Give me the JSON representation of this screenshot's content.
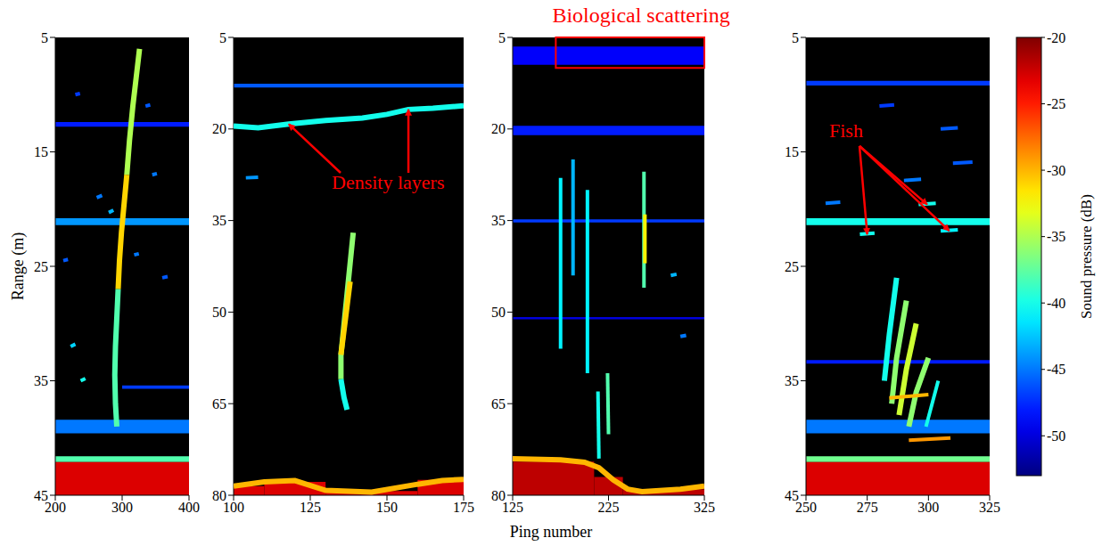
{
  "chart_data": [
    {
      "type": "echogram",
      "xlim": [
        200,
        400
      ],
      "xticks": [
        200,
        300,
        400
      ],
      "ylim": [
        5,
        45
      ],
      "yticks": [
        5,
        15,
        25,
        35,
        45
      ],
      "layers": [
        {
          "x": [
            200,
            400
          ],
          "y": [
            12.4,
            12.8
          ],
          "db": -48
        },
        {
          "x": [
            200,
            400
          ],
          "y": [
            20.8,
            21.4
          ],
          "db": -44
        },
        {
          "x": [
            300,
            400
          ],
          "y": [
            35.4,
            35.7
          ],
          "db": -47
        },
        {
          "x": [
            200,
            400
          ],
          "y": [
            38.4,
            39.6
          ],
          "db": -45
        },
        {
          "x": [
            200,
            400
          ],
          "y": [
            41.6,
            42.1
          ],
          "db": -38
        },
        {
          "x": [
            200,
            400
          ],
          "y": [
            42.1,
            45
          ],
          "db": -23
        }
      ],
      "tracks": [
        {
          "x": [
            326,
            321,
            316,
            311,
            307
          ],
          "y": [
            6,
            8.5,
            11,
            14,
            17
          ],
          "db": -35
        },
        {
          "x": [
            307,
            303,
            299,
            296,
            294
          ],
          "y": [
            17,
            19.5,
            22,
            24.5,
            27
          ],
          "db": -31
        },
        {
          "x": [
            294,
            292,
            290,
            289,
            290,
            292
          ],
          "y": [
            27,
            29.5,
            32,
            34.5,
            37,
            39
          ],
          "db": -38
        },
        {
          "x": [
            223,
            230
          ],
          "y": [
            32,
            31.8
          ],
          "db": -42
        },
        {
          "x": [
            238,
            245
          ],
          "y": [
            35,
            34.8
          ],
          "db": -40
        },
        {
          "x": [
            262,
            270
          ],
          "y": [
            19,
            18.8
          ],
          "db": -45
        },
        {
          "x": [
            280,
            287
          ],
          "y": [
            20.3,
            20.1
          ],
          "db": -43
        },
        {
          "x": [
            345,
            352
          ],
          "y": [
            17,
            16.9
          ],
          "db": -45
        },
        {
          "x": [
            318,
            325
          ],
          "y": [
            24,
            23.9
          ],
          "db": -45
        },
        {
          "x": [
            212,
            219
          ],
          "y": [
            24.5,
            24.4
          ],
          "db": -46
        },
        {
          "x": [
            360,
            368
          ],
          "y": [
            26,
            25.9
          ],
          "db": -46
        },
        {
          "x": [
            230,
            237
          ],
          "y": [
            10,
            9.9
          ],
          "db": -47
        },
        {
          "x": [
            335,
            342
          ],
          "y": [
            11,
            10.9
          ],
          "db": -46
        }
      ]
    },
    {
      "type": "echogram",
      "xlim": [
        100,
        175
      ],
      "xticks": [
        100,
        125,
        150,
        175
      ],
      "ylim": [
        5,
        80
      ],
      "yticks": [
        5,
        20,
        35,
        50,
        65,
        80
      ],
      "layers": [
        {
          "x": [
            100,
            175
          ],
          "y": [
            12.6,
            13.2
          ],
          "db": -46
        },
        {
          "x": [
            100,
            110
          ],
          "y": [
            78.5,
            80
          ],
          "db": -23
        },
        {
          "x": [
            110,
            130
          ],
          "y": [
            77.8,
            80
          ],
          "db": -23
        },
        {
          "x": [
            130,
            160
          ],
          "y": [
            79.3,
            80
          ],
          "db": -23
        },
        {
          "x": [
            160,
            175
          ],
          "y": [
            77.5,
            80
          ],
          "db": -23
        }
      ],
      "tracks": [
        {
          "x": [
            100,
            108,
            118,
            130,
            142,
            150,
            157,
            165,
            175
          ],
          "y": [
            19.5,
            19.8,
            19.2,
            18.6,
            18.2,
            17.6,
            16.8,
            16.6,
            16.2
          ],
          "db": -40
        },
        {
          "x": [
            139,
            138,
            137,
            136,
            135,
            135
          ],
          "y": [
            37,
            42,
            47,
            52,
            57,
            61
          ],
          "db": -36
        },
        {
          "x": [
            138,
            137,
            136,
            135
          ],
          "y": [
            45,
            49,
            53,
            57
          ],
          "db": -31
        },
        {
          "x": [
            135,
            136,
            137
          ],
          "y": [
            61,
            64,
            66
          ],
          "db": -40
        },
        {
          "x": [
            100,
            110,
            120,
            130,
            145,
            160,
            168,
            175
          ],
          "y": [
            78.5,
            77.8,
            77.6,
            79.2,
            79.5,
            78.2,
            77.6,
            77.4
          ],
          "db": -30
        },
        {
          "x": [
            104,
            108
          ],
          "y": [
            28,
            27.9
          ],
          "db": -44
        }
      ],
      "annotations": [
        {
          "text": "Density layers",
          "targets": [
            [
              118,
              19.2
            ],
            [
              157,
              16.8
            ]
          ]
        }
      ]
    },
    {
      "type": "echogram",
      "xlim": [
        125,
        325
      ],
      "xticks": [
        125,
        225,
        325
      ],
      "ylim": [
        5,
        80
      ],
      "yticks": [
        5,
        20,
        35,
        50,
        65,
        80
      ],
      "layers": [
        {
          "x": [
            125,
            325
          ],
          "y": [
            6.5,
            9.5
          ],
          "db": -49
        },
        {
          "x": [
            125,
            325
          ],
          "y": [
            19.5,
            21
          ],
          "db": -48
        },
        {
          "x": [
            125,
            325
          ],
          "y": [
            34.8,
            35.3
          ],
          "db": -47
        },
        {
          "x": [
            125,
            325
          ],
          "y": [
            50.8,
            51.2
          ],
          "db": -50
        },
        {
          "x": [
            125,
            210
          ],
          "y": [
            74.5,
            80
          ],
          "db": -22
        },
        {
          "x": [
            210,
            240
          ],
          "y": [
            77,
            80
          ],
          "db": -22
        },
        {
          "x": [
            240,
            325
          ],
          "y": [
            79,
            80
          ],
          "db": -22
        }
      ],
      "tracks": [
        {
          "x": [
            125,
            175,
            200,
            215,
            230,
            245,
            260,
            300,
            325
          ],
          "y": [
            74,
            74.2,
            74.6,
            75.5,
            77.5,
            79,
            79.4,
            79,
            78.5
          ],
          "db": -30
        },
        {
          "x": [
            175,
            175
          ],
          "y": [
            28,
            56
          ],
          "db": -41
        },
        {
          "x": [
            188,
            188
          ],
          "y": [
            25,
            44
          ],
          "db": -43
        },
        {
          "x": [
            203,
            203
          ],
          "y": [
            30,
            60
          ],
          "db": -41
        },
        {
          "x": [
            262,
            262
          ],
          "y": [
            27,
            46
          ],
          "db": -38
        },
        {
          "x": [
            263,
            263
          ],
          "y": [
            34,
            42
          ],
          "db": -32
        },
        {
          "x": [
            214,
            215
          ],
          "y": [
            63,
            74
          ],
          "db": -40
        },
        {
          "x": [
            224,
            225
          ],
          "y": [
            60,
            70
          ],
          "db": -38
        },
        {
          "x": [
            290,
            296
          ],
          "y": [
            44,
            43.8
          ],
          "db": -43
        },
        {
          "x": [
            300,
            306
          ],
          "y": [
            54,
            53.8
          ],
          "db": -45
        }
      ],
      "annotations": [
        {
          "text": "Biological scattering",
          "box": {
            "x": [
              170,
              325
            ],
            "y": [
              5,
              10
            ]
          }
        }
      ]
    },
    {
      "type": "echogram",
      "xlim": [
        250,
        325
      ],
      "xticks": [
        250,
        275,
        300,
        325
      ],
      "ylim": [
        5,
        45
      ],
      "yticks": [
        5,
        15,
        25,
        35,
        45
      ],
      "layers": [
        {
          "x": [
            250,
            325
          ],
          "y": [
            8.8,
            9.2
          ],
          "db": -47
        },
        {
          "x": [
            250,
            325
          ],
          "y": [
            20.8,
            21.4
          ],
          "db": -40
        },
        {
          "x": [
            250,
            325
          ],
          "y": [
            33.2,
            33.5
          ],
          "db": -48
        },
        {
          "x": [
            250,
            325
          ],
          "y": [
            38.4,
            39.6
          ],
          "db": -45
        },
        {
          "x": [
            250,
            325
          ],
          "y": [
            41.6,
            42.1
          ],
          "db": -37
        },
        {
          "x": [
            250,
            325
          ],
          "y": [
            42.1,
            45
          ],
          "db": -23
        }
      ],
      "tracks": [
        {
          "x": [
            272,
            278
          ],
          "y": [
            22.2,
            22.1
          ],
          "db": -40
        },
        {
          "x": [
            296,
            303
          ],
          "y": [
            19.6,
            19.5
          ],
          "db": -40
        },
        {
          "x": [
            305,
            312
          ],
          "y": [
            21.9,
            21.8
          ],
          "db": -41
        },
        {
          "x": [
            290,
            297
          ],
          "y": [
            17.5,
            17.4
          ],
          "db": -45
        },
        {
          "x": [
            305,
            312
          ],
          "y": [
            13,
            12.9
          ],
          "db": -46
        },
        {
          "x": [
            280,
            286
          ],
          "y": [
            11,
            10.9
          ],
          "db": -47
        },
        {
          "x": [
            258,
            264
          ],
          "y": [
            19.5,
            19.4
          ],
          "db": -45
        },
        {
          "x": [
            310,
            318
          ],
          "y": [
            16,
            15.9
          ],
          "db": -46
        },
        {
          "x": [
            287,
            284,
            282
          ],
          "y": [
            26,
            31,
            35
          ],
          "db": -40
        },
        {
          "x": [
            291,
            287,
            285
          ],
          "y": [
            28,
            33,
            37
          ],
          "db": -36
        },
        {
          "x": [
            295,
            291,
            288
          ],
          "y": [
            30,
            34,
            38
          ],
          "db": -34
        },
        {
          "x": [
            300,
            295,
            292
          ],
          "y": [
            33,
            36,
            39
          ],
          "db": -36
        },
        {
          "x": [
            304,
            299
          ],
          "y": [
            35,
            39
          ],
          "db": -40
        },
        {
          "x": [
            284,
            300
          ],
          "y": [
            36.5,
            36.2
          ],
          "db": -30
        },
        {
          "x": [
            292,
            309
          ],
          "y": [
            40.2,
            40
          ],
          "db": -29
        }
      ],
      "annotations": [
        {
          "text": "Fish",
          "targets": [
            [
              275,
              22.2
            ],
            [
              299.5,
              19.6
            ],
            [
              308.5,
              21.9
            ]
          ]
        }
      ]
    }
  ],
  "xlabel": "Ping number",
  "ylabel": "Range (m)",
  "colorbar": {
    "label": "Sound pressure (dB)",
    "range": [
      -53,
      -20
    ],
    "ticks": [
      -20,
      -25,
      -30,
      -35,
      -40,
      -45,
      -50
    ]
  }
}
